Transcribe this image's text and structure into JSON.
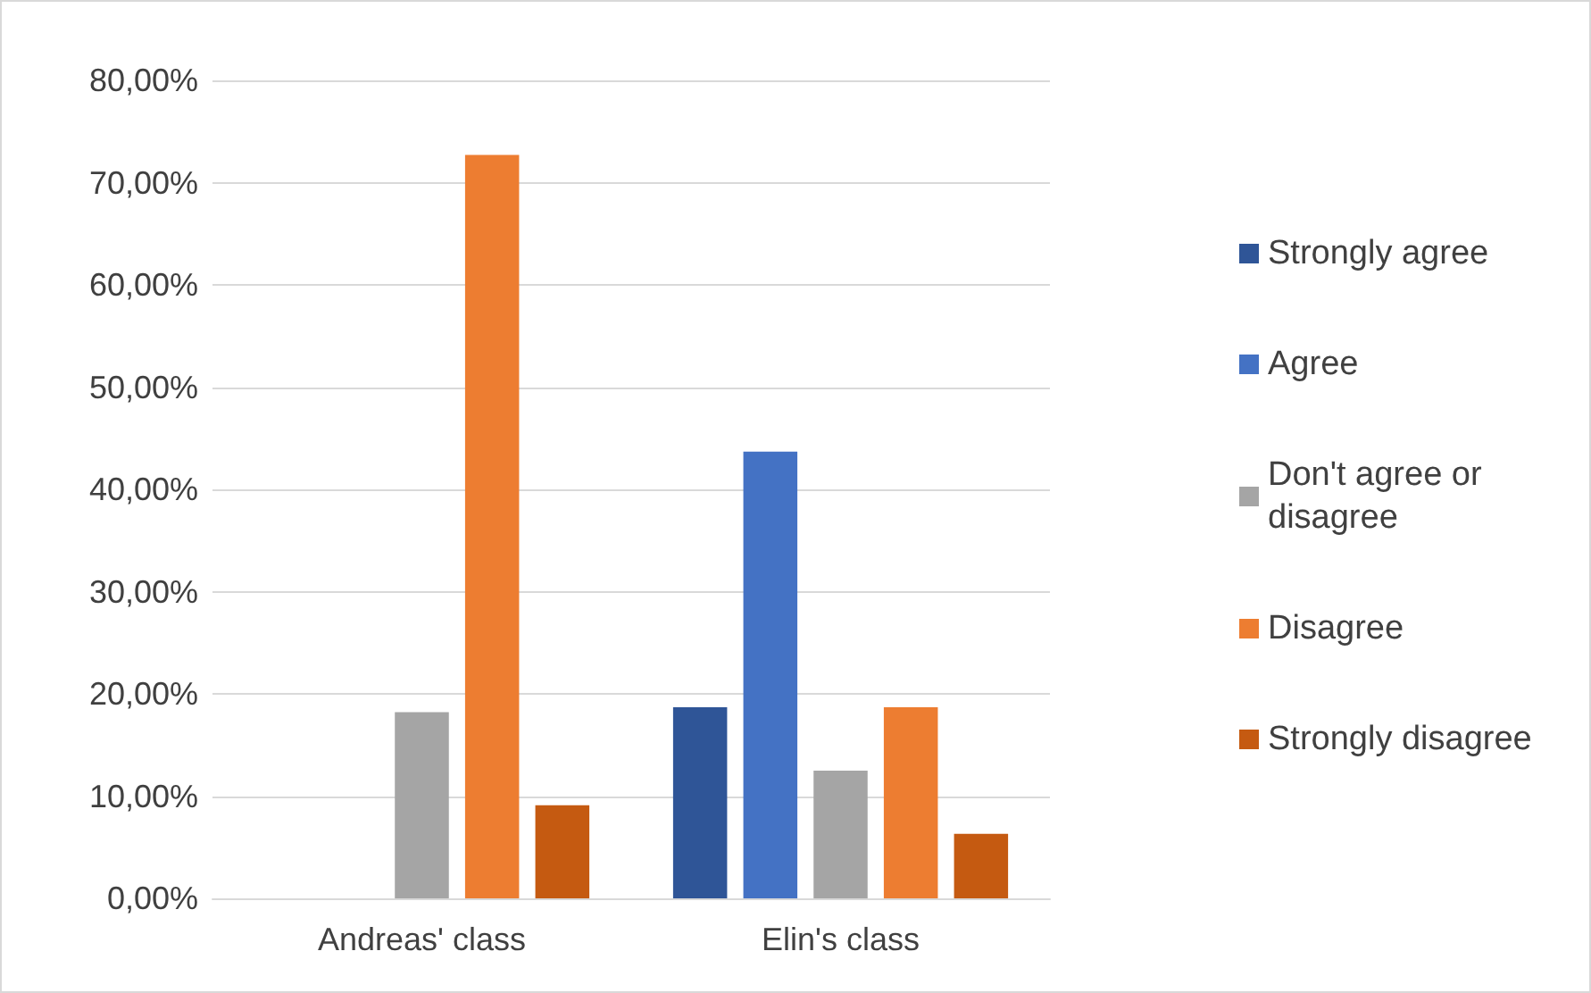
{
  "chart_data": {
    "type": "bar",
    "categories": [
      "Andreas' class",
      "Elin's class"
    ],
    "series": [
      {
        "name": "Strongly agree",
        "color": "#2f5597",
        "values": [
          0,
          18.7
        ]
      },
      {
        "name": "Agree",
        "color": "#4472c4",
        "values": [
          0,
          43.7
        ]
      },
      {
        "name": "Don't agree or disagree",
        "color": "#a5a5a5",
        "values": [
          18.2,
          12.5
        ]
      },
      {
        "name": "Disagree",
        "color": "#ed7d31",
        "values": [
          72.7,
          18.7
        ]
      },
      {
        "name": "Strongly disagree",
        "color": "#c55a11",
        "values": [
          9.1,
          6.3
        ]
      }
    ],
    "ylim": [
      0,
      80
    ],
    "yticks": [
      {
        "value": 0,
        "label": "0,00%"
      },
      {
        "value": 10,
        "label": "10,00%"
      },
      {
        "value": 20,
        "label": "20,00%"
      },
      {
        "value": 30,
        "label": "30,00%"
      },
      {
        "value": 40,
        "label": "40,00%"
      },
      {
        "value": 50,
        "label": "50,00%"
      },
      {
        "value": 60,
        "label": "60,00%"
      },
      {
        "value": 70,
        "label": "70,00%"
      },
      {
        "value": 80,
        "label": "80,00%"
      }
    ],
    "grid": "y",
    "legend": "right"
  }
}
